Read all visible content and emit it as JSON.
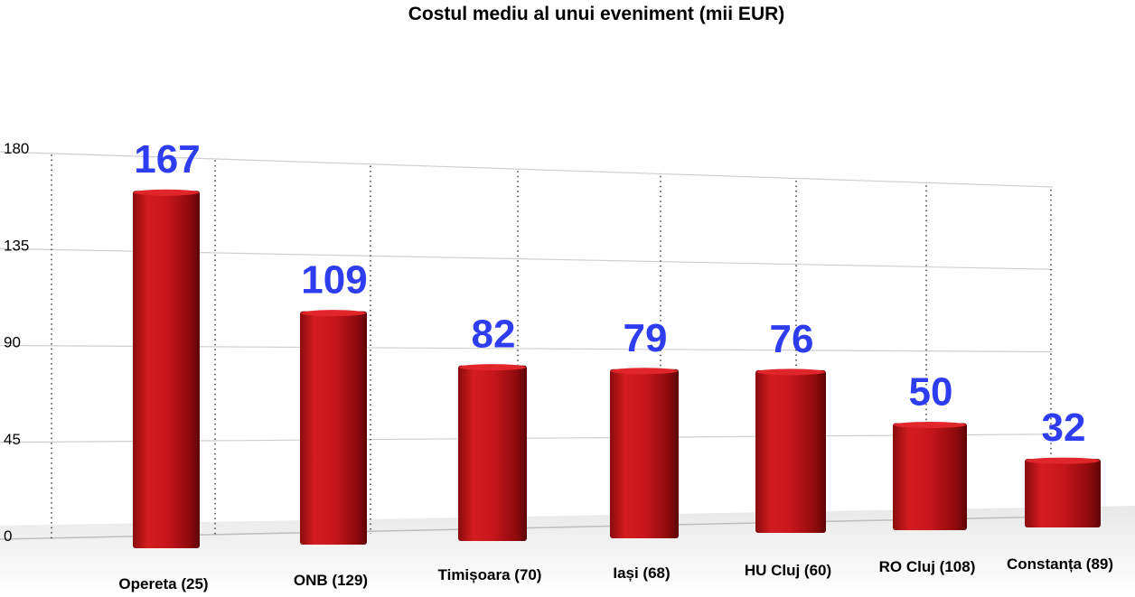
{
  "chart_data": {
    "type": "bar",
    "title": "Costul mediu al unui eveniment (mii EUR)",
    "xlabel": "",
    "ylabel": "",
    "categories": [
      "Opereta (25)",
      "ONB (129)",
      "Timișoara (70)",
      "Iași (68)",
      "HU Cluj  (60)",
      "RO Cluj (108)",
      "Constanța (89)"
    ],
    "values": [
      167,
      109,
      82,
      79,
      76,
      50,
      32
    ],
    "data_labels": [
      "167",
      "109",
      "82",
      "79",
      "76",
      "50",
      "32"
    ],
    "y_ticks": [
      "0",
      "45",
      "90",
      "135",
      "180"
    ],
    "ylim": [
      0,
      180
    ],
    "grid": true,
    "legend": "none",
    "colors": {
      "bar": "#c8161b",
      "bar_dark": "#6e0608",
      "value_label": "#2e3df0",
      "grid": "#cfcfcf"
    }
  }
}
